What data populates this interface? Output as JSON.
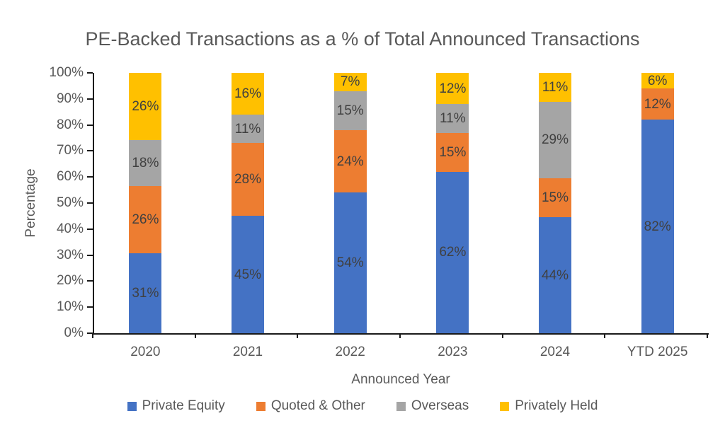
{
  "chart_data": {
    "type": "bar",
    "stacked": true,
    "percent_stacked": true,
    "title": "PE-Backed Transactions as a % of Total Announced Transactions",
    "xlabel": "Announced Year",
    "ylabel": "Percentage",
    "categories": [
      "2020",
      "2021",
      "2022",
      "2023",
      "2024",
      "YTD 2025"
    ],
    "series": [
      {
        "name": "Private Equity",
        "color": "#4472C4",
        "values": [
          31,
          45,
          54,
          62,
          44,
          82
        ]
      },
      {
        "name": "Quoted & Other",
        "color": "#ED7D31",
        "values": [
          26,
          28,
          24,
          15,
          15,
          12
        ]
      },
      {
        "name": "Overseas",
        "color": "#A5A5A5",
        "values": [
          18,
          11,
          15,
          11,
          29,
          0
        ]
      },
      {
        "name": "Privately Held",
        "color": "#FFC000",
        "values": [
          26,
          16,
          7,
          12,
          11,
          6
        ]
      }
    ],
    "ylim": [
      0,
      100
    ],
    "ytick_step": 10,
    "ytick_suffix": "%",
    "data_label_suffix": "%",
    "grid": false,
    "legend_position": "bottom",
    "axis_color": "#1a1a1a",
    "text_color": "#595959",
    "data_label_color": "#404040"
  }
}
